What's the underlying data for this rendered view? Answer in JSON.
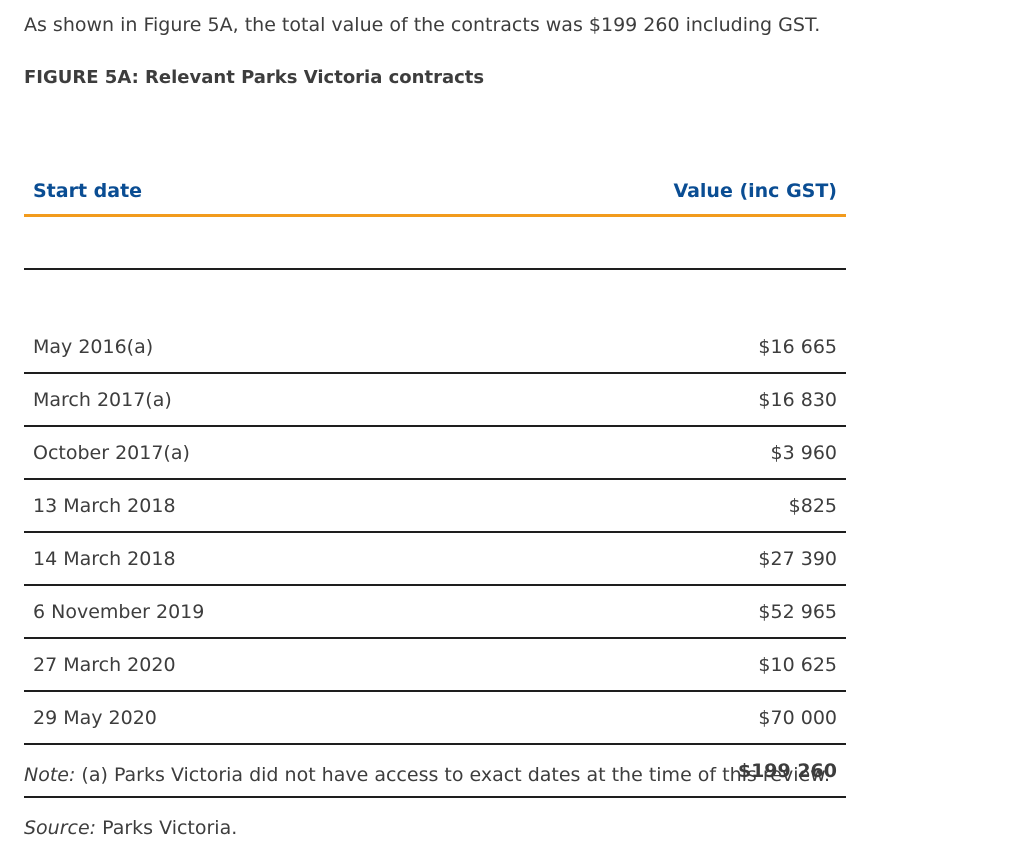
{
  "intro_text": "As shown in Figure 5A, the total value of the contracts was $199 260 including GST.",
  "figure_title": "FIGURE 5A: Relevant Parks Victoria contracts",
  "table": {
    "headers": {
      "start_date": "Start date",
      "value": "Value (inc GST)"
    },
    "rows": [
      {
        "date": "May 2016(a)",
        "value": "$16 665"
      },
      {
        "date": "March 2017(a)",
        "value": "$16 830"
      },
      {
        "date": "October 2017(a)",
        "value": "$3 960"
      },
      {
        "date": "13 March 2018",
        "value": "$825"
      },
      {
        "date": "14 March 2018",
        "value": "$27 390"
      },
      {
        "date": "6 November 2019",
        "value": "$52 965"
      },
      {
        "date": "27 March 2020",
        "value": "$10 625"
      },
      {
        "date": "29 May 2020",
        "value": "$70 000"
      }
    ],
    "total": {
      "date": "",
      "value": "$199 260"
    }
  },
  "note": {
    "label": "Note:",
    "text": " (a) Parks Victoria did not have access to exact dates at the time of this review."
  },
  "source": {
    "label": "Source:",
    "text": " Parks Victoria."
  },
  "colors": {
    "header_text": "#0a4d93",
    "header_rule": "#f29b1d",
    "row_rule": "#1e1e1e",
    "body_text": "#3d3d3d"
  }
}
